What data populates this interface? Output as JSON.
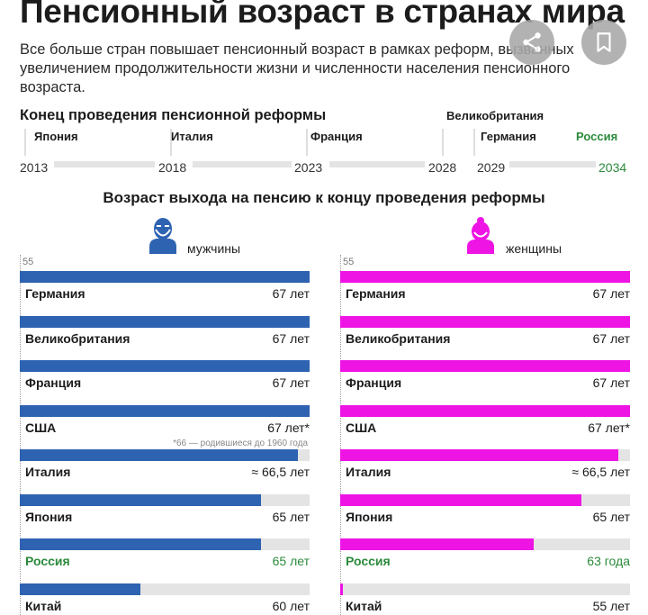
{
  "header": {
    "title": "Пенсионный возраст в странах мира",
    "subtitle": "Все больше стран повышает пенсионный возраст в рамках реформ, вызванных увеличением продолжительности жизни и численности населения пенсионного возраста."
  },
  "timeline": {
    "title": "Конец проведения пенсионной реформы",
    "years": [
      "2013",
      "2018",
      "2023",
      "2028",
      "2029",
      "2034"
    ],
    "events": [
      {
        "country": "Япония",
        "year": 2013,
        "highlight": false
      },
      {
        "country": "Италия",
        "year": 2018,
        "highlight": false
      },
      {
        "country": "Франция",
        "year": 2023,
        "highlight": false
      },
      {
        "country": "Великобритания",
        "year": 2028,
        "highlight": false
      },
      {
        "country": "Германия",
        "year": 2029,
        "highlight": false
      },
      {
        "country": "Россия",
        "year": 2034,
        "highlight": true
      }
    ]
  },
  "chart_data": {
    "type": "bar",
    "title": "Возраст выхода на пенсию к концу проведения реформы",
    "axis_min_label": "55",
    "xlim": [
      55,
      67
    ],
    "categories": [
      "Германия",
      "Великобритания",
      "Франция",
      "США",
      "Италия",
      "Япония",
      "Россия",
      "Китай"
    ],
    "series": [
      {
        "name": "мужчины",
        "color": "#2e63b1",
        "values": [
          67,
          67,
          67,
          67,
          66.5,
          65,
          65,
          60
        ],
        "labels": [
          "67 лет",
          "67 лет",
          "67 лет",
          "67 лет*",
          "≈ 66,5 лет",
          "65 лет",
          "65 лет",
          "60 лет"
        ],
        "note": "*66 — родившиеся до 1960 года"
      },
      {
        "name": "женщины",
        "color": "#ee14e4",
        "values": [
          67,
          67,
          67,
          67,
          66.5,
          65,
          63,
          55
        ],
        "labels": [
          "67 лет",
          "67 лет",
          "67 лет",
          "67 лет*",
          "≈ 66,5 лет",
          "65 лет",
          "63 года",
          "55 лет"
        ]
      }
    ],
    "highlight_category": "Россия",
    "highlight_color": "#2c8a3c"
  }
}
